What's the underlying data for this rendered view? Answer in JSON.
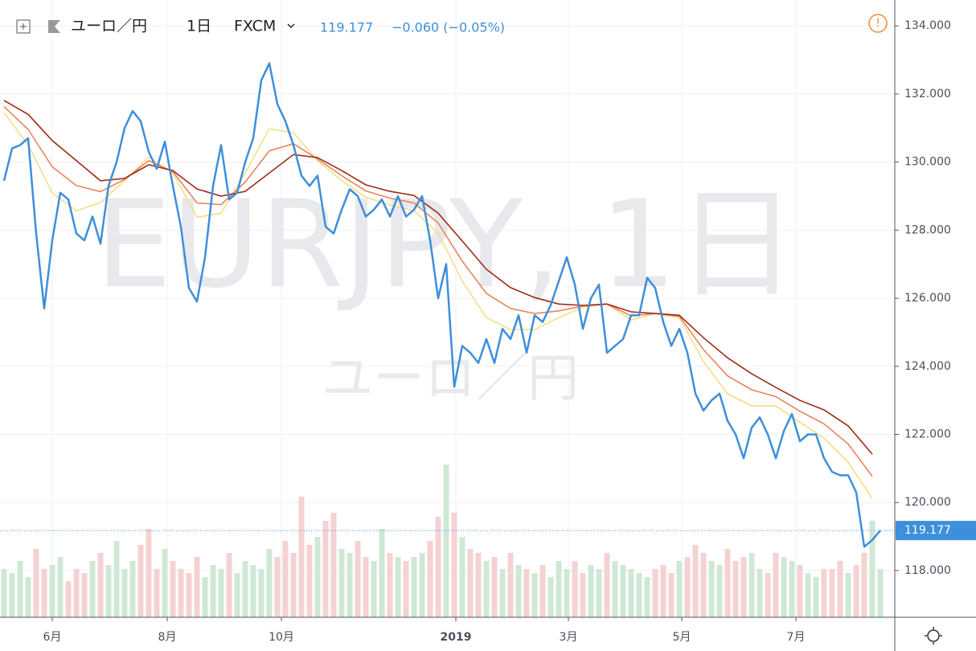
{
  "header": {
    "pair": "ユーロ／円",
    "interval": "1日",
    "source": "FXCM",
    "change": "−0.060 (−0.05%)"
  },
  "watermark": {
    "symbol": "EURJPY, 1日",
    "name": "ユーロ／円"
  },
  "chart_data": {
    "type": "line",
    "xlim": [
      -0.5,
      110.8
    ],
    "xticks": [
      {
        "value": 6.0,
        "label": "6月"
      },
      {
        "value": 20.3,
        "label": "8月"
      },
      {
        "value": 34.5,
        "label": "10月"
      },
      {
        "value": 56.2,
        "label": "2019"
      },
      {
        "value": 70.2,
        "label": "3月"
      },
      {
        "value": 84.3,
        "label": "5月"
      },
      {
        "value": 98.5,
        "label": "7月"
      }
    ],
    "ylim": [
      116.63,
      134.76
    ],
    "yticks": [
      {
        "value": 118,
        "label": "118.000"
      },
      {
        "value": 120,
        "label": "120.000"
      },
      {
        "value": 122,
        "label": "122.000"
      },
      {
        "value": 124,
        "label": "124.000"
      },
      {
        "value": 126,
        "label": "126.000"
      },
      {
        "value": 128,
        "label": "128.000"
      },
      {
        "value": 130,
        "label": "130.000"
      },
      {
        "value": 132,
        "label": "132.000"
      },
      {
        "value": 134,
        "label": "134.000"
      }
    ],
    "grid": true,
    "series": [
      {
        "color": "#3d8fdb",
        "x": [
          0,
          1,
          2,
          3,
          4,
          5,
          6,
          7,
          8,
          9,
          10,
          11,
          12,
          13,
          14,
          15,
          16,
          17,
          18,
          19,
          20,
          21,
          22,
          23,
          24,
          25,
          26,
          27,
          28,
          29,
          30,
          31,
          32,
          33,
          34,
          35,
          36,
          37,
          38,
          39,
          40,
          41,
          42,
          43,
          44,
          45,
          46,
          47,
          48,
          49,
          50,
          51,
          52,
          53,
          54,
          55,
          56,
          57,
          58,
          59,
          60,
          61,
          62,
          63,
          64,
          65,
          66,
          67,
          68,
          69,
          70,
          71,
          72,
          73,
          74,
          75,
          76,
          77,
          78,
          79,
          80,
          81,
          82,
          83,
          84,
          85,
          86,
          87,
          88,
          89,
          90,
          91,
          92,
          93,
          94,
          95,
          96,
          97,
          98,
          99,
          100,
          101,
          102,
          103,
          104,
          105,
          106,
          107,
          108,
          109
        ],
        "values": [
          129.45,
          130.4,
          130.5,
          130.7,
          127.9,
          125.7,
          127.7,
          129.1,
          128.9,
          127.9,
          127.7,
          128.4,
          127.6,
          129.3,
          130.0,
          131.0,
          131.5,
          131.2,
          130.3,
          129.8,
          130.6,
          129.3,
          128.1,
          126.3,
          125.9,
          127.2,
          129.3,
          130.5,
          128.9,
          129.1,
          130.0,
          130.7,
          132.4,
          132.9,
          131.7,
          131.2,
          130.5,
          129.6,
          129.3,
          129.6,
          128.1,
          127.9,
          128.6,
          129.2,
          129.0,
          128.4,
          128.6,
          128.9,
          128.4,
          129.0,
          128.4,
          128.6,
          129.0,
          127.7,
          126.0,
          127.0,
          123.4,
          124.6,
          124.4,
          124.1,
          124.8,
          124.1,
          125.1,
          124.8,
          125.5,
          124.4,
          125.5,
          125.3,
          125.8,
          126.5,
          127.2,
          126.4,
          125.1,
          126.0,
          126.4,
          124.4,
          124.6,
          124.8,
          125.5,
          125.5,
          126.6,
          126.3,
          125.3,
          124.6,
          125.1,
          124.4,
          123.2,
          122.7,
          123.0,
          123.2,
          122.4,
          122.0,
          121.3,
          122.2,
          122.5,
          122.0,
          121.3,
          122.1,
          122.6,
          121.8,
          122.0,
          122.0,
          121.3,
          120.9,
          120.8,
          120.8,
          120.3,
          118.7,
          118.9,
          119.177
        ]
      }
    ],
    "ribbons": {
      "x": [
        0,
        3,
        6,
        9,
        12,
        15,
        18,
        21,
        24,
        27,
        30,
        33,
        36,
        39,
        42,
        45,
        48,
        51,
        54,
        57,
        60,
        63,
        66,
        69,
        72,
        75,
        78,
        81,
        84,
        87,
        90,
        93,
        96,
        99,
        102,
        105,
        108
      ],
      "lines": [
        {
          "color": "#f6de86",
          "values": [
            131.45,
            130.51,
            129.09,
            128.57,
            128.81,
            129.45,
            130.15,
            129.68,
            128.38,
            128.5,
            129.68,
            130.98,
            130.86,
            130.04,
            129.45,
            128.97,
            128.74,
            128.57,
            127.91,
            126.5,
            125.43,
            125.08,
            125.08,
            125.43,
            125.74,
            125.83,
            125.36,
            125.55,
            125.43,
            124.14,
            123.19,
            122.84,
            122.84,
            122.36,
            121.89,
            121.18,
            120.12
          ]
        },
        {
          "color": "#e9845c",
          "values": [
            131.63,
            130.96,
            129.86,
            129.31,
            129.13,
            129.49,
            130.04,
            129.72,
            128.8,
            128.75,
            129.41,
            130.33,
            130.54,
            130.09,
            129.6,
            129.15,
            128.94,
            128.8,
            128.21,
            127.09,
            126.14,
            125.7,
            125.55,
            125.63,
            125.77,
            125.83,
            125.48,
            125.55,
            125.47,
            124.49,
            123.72,
            123.31,
            123.11,
            122.68,
            122.31,
            121.72,
            120.77
          ]
        },
        {
          "color": "#9e2b17",
          "values": [
            131.81,
            131.4,
            130.63,
            130.04,
            129.45,
            129.52,
            129.92,
            129.75,
            129.21,
            129.0,
            129.14,
            129.68,
            130.22,
            130.13,
            129.75,
            129.33,
            129.14,
            129.02,
            128.5,
            127.68,
            126.85,
            126.31,
            126.02,
            125.83,
            125.79,
            125.83,
            125.6,
            125.55,
            125.5,
            124.84,
            124.25,
            123.78,
            123.38,
            123.0,
            122.72,
            122.25,
            121.42
          ]
        }
      ]
    },
    "volume": {
      "ylim": [
        0,
        250
      ],
      "up_color": "#cfe8d6",
      "down_color": "#f5d2d2",
      "values": [
        60,
        55,
        70,
        50,
        85,
        60,
        65,
        75,
        45,
        60,
        55,
        70,
        80,
        65,
        95,
        60,
        70,
        90,
        110,
        60,
        85,
        70,
        60,
        55,
        75,
        50,
        65,
        60,
        80,
        55,
        70,
        65,
        60,
        85,
        75,
        95,
        80,
        150,
        90,
        100,
        120,
        130,
        85,
        80,
        95,
        75,
        70,
        110,
        80,
        75,
        70,
        75,
        80,
        95,
        125,
        190,
        130,
        100,
        85,
        80,
        70,
        75,
        60,
        80,
        65,
        60,
        55,
        65,
        50,
        70,
        60,
        70,
        55,
        65,
        60,
        80,
        70,
        65,
        60,
        55,
        50,
        60,
        65,
        55,
        70,
        75,
        90,
        80,
        70,
        65,
        85,
        70,
        75,
        80,
        60,
        55,
        80,
        75,
        70,
        65,
        55,
        50,
        60,
        60,
        70,
        55,
        65,
        80,
        120,
        60
      ]
    }
  }
}
